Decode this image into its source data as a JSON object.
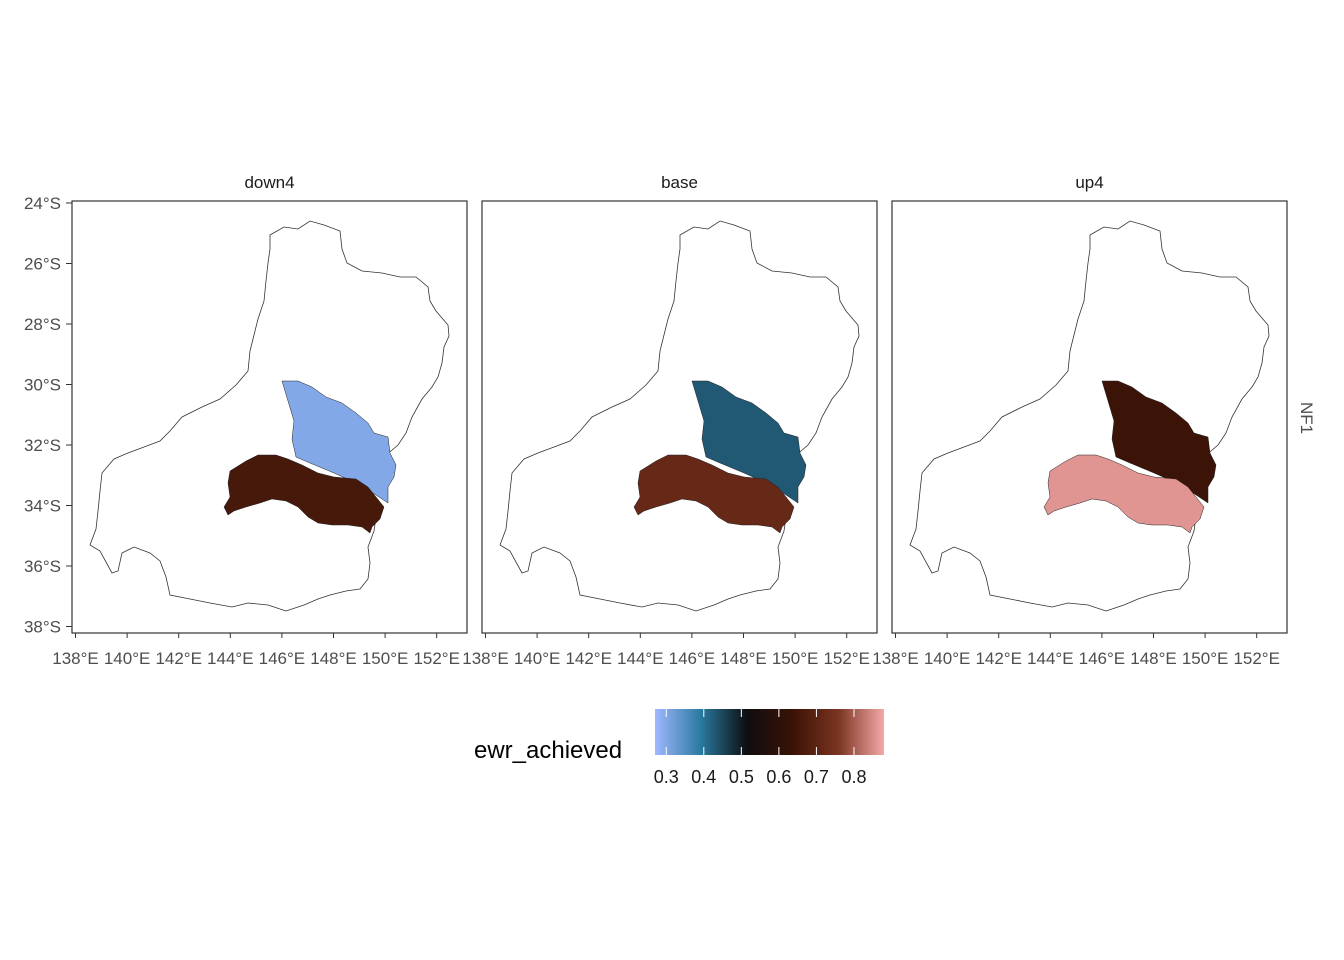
{
  "map": {
    "facet_row_label": "NF1",
    "panels": [
      {
        "label": "down4",
        "regions": {
          "north": 0.3,
          "south": 0.66
        }
      },
      {
        "label": "base",
        "regions": {
          "north": 0.43,
          "south": 0.72
        }
      },
      {
        "label": "up4",
        "regions": {
          "north": 0.64,
          "south": 0.86
        }
      }
    ],
    "x_ticks": [
      "138°E",
      "140°E",
      "142°E",
      "144°E",
      "146°E",
      "148°E",
      "150°E",
      "152°E"
    ],
    "y_ticks": [
      "24°S",
      "26°S",
      "28°S",
      "30°S",
      "32°S",
      "34°S",
      "36°S",
      "38°S"
    ],
    "legend": {
      "title": "ewr_achieved",
      "ticks": [
        "0.3",
        "0.4",
        "0.5",
        "0.6",
        "0.7",
        "0.8"
      ],
      "range": [
        0.27,
        0.88
      ],
      "colors": [
        "#9fb7ff",
        "#2a7aa0",
        "#0e0e10",
        "#3a1206",
        "#7a3420",
        "#f4a8a8"
      ]
    },
    "outline_color": "#333333",
    "panel_border_color": "#333333"
  }
}
